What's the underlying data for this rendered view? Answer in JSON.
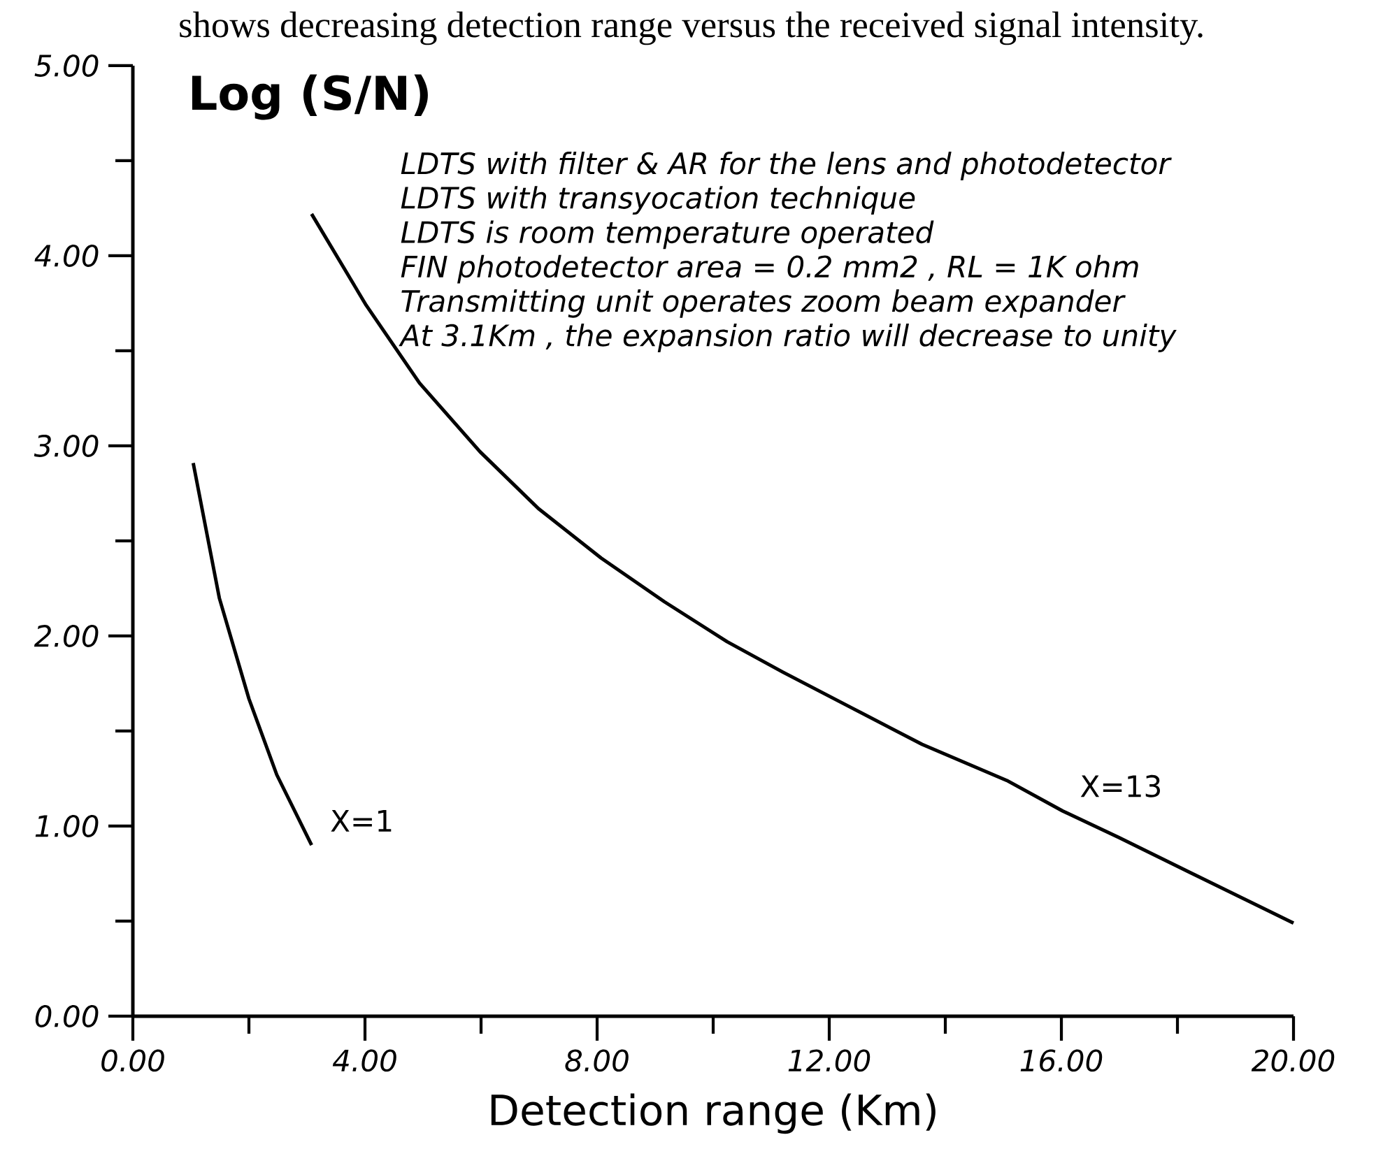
{
  "chart_data": {
    "type": "line",
    "title": "shows decreasing detection range versus the received signal intensity.",
    "xlabel": "Detection range (Km)",
    "ylabel": "Log (S/N)",
    "xlim": [
      0,
      20
    ],
    "ylim": [
      0,
      5
    ],
    "xticks": [
      {
        "value": 0,
        "label": "0.00"
      },
      {
        "value": 2,
        "label": null
      },
      {
        "value": 4,
        "label": "4.00"
      },
      {
        "value": 6,
        "label": null
      },
      {
        "value": 8,
        "label": "8.00"
      },
      {
        "value": 10,
        "label": null
      },
      {
        "value": 12,
        "label": "12.00"
      },
      {
        "value": 14,
        "label": null
      },
      {
        "value": 16,
        "label": "16.00"
      },
      {
        "value": 18,
        "label": null
      },
      {
        "value": 20,
        "label": "20.00"
      }
    ],
    "yticks": [
      {
        "value": 0,
        "label": "0.00"
      },
      {
        "value": 0.5,
        "label": null
      },
      {
        "value": 1,
        "label": "1.00"
      },
      {
        "value": 1.5,
        "label": null
      },
      {
        "value": 2,
        "label": "2.00"
      },
      {
        "value": 2.5,
        "label": null
      },
      {
        "value": 3,
        "label": "3.00"
      },
      {
        "value": 3.5,
        "label": null
      },
      {
        "value": 4,
        "label": "4.00"
      },
      {
        "value": 4.5,
        "label": null
      },
      {
        "value": 5,
        "label": "5.00"
      }
    ],
    "series": [
      {
        "color": "#000000",
        "x": [
          1.04,
          1.49,
          2.0,
          2.48,
          3.08
        ],
        "values": [
          2.91,
          2.2,
          1.67,
          1.27,
          0.9
        ]
      },
      {
        "color": "#000000",
        "x": [
          3.08,
          4.02,
          4.94,
          5.98,
          6.99,
          8.07,
          9.16,
          10.24,
          11.2,
          12.4,
          13.6,
          15.06,
          16.02,
          16.99,
          18.19,
          20.0
        ],
        "values": [
          4.22,
          3.74,
          3.33,
          2.97,
          2.67,
          2.41,
          2.18,
          1.97,
          1.81,
          1.62,
          1.43,
          1.24,
          1.08,
          0.94,
          0.76,
          0.49
        ]
      }
    ],
    "annotations": [
      "LDTS with filter & AR for the lens and photodetector",
      "LDTS with transyocation technique",
      "LDTS is room temperature operated",
      "FIN photodetector area = 0.2 mm2 , RL = 1K ohm",
      "Transmitting unit operates zoom beam expander",
      "At 3.1Km , the expansion ratio will decrease to unity",
      {
        "text": "X=1",
        "x": 3.08,
        "y": 0.9
      },
      {
        "text": "X=13",
        "x": 16.0,
        "y": 1.08
      }
    ]
  }
}
